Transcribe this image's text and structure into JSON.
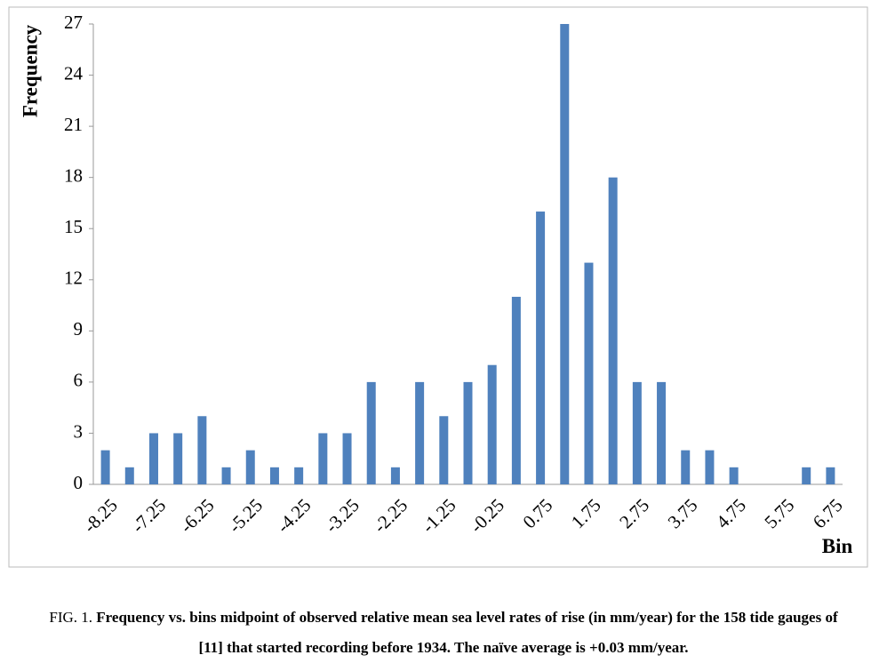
{
  "chart_data": {
    "type": "bar",
    "y_label": "Frequency",
    "x_label": "Bin",
    "caption_label": "FIG. 1.",
    "caption": "Frequency vs. bins midpoint of observed relative mean sea level rates of rise (in mm/year) for the 158 tide gauges of [11] that started recording before 1934. The naïve average is +0.03 mm/year.",
    "categories": [
      "-8.25",
      null,
      "-7.25",
      null,
      "-6.25",
      null,
      "-5.25",
      null,
      "-4.25",
      null,
      "-3.25",
      null,
      "-2.25",
      null,
      "-1.25",
      null,
      "-0.25",
      null,
      "0.75",
      null,
      "1.75",
      null,
      "2.75",
      null,
      "3.75",
      null,
      "4.75",
      null,
      "5.75",
      null,
      "6.75"
    ],
    "values": [
      2,
      1,
      3,
      3,
      4,
      1,
      2,
      1,
      1,
      3,
      3,
      6,
      1,
      6,
      4,
      6,
      7,
      11,
      16,
      27,
      13,
      18,
      6,
      6,
      2,
      2,
      1,
      0,
      0,
      1,
      1
    ],
    "color": "#4f81bd",
    "ylim": [
      0,
      27
    ],
    "yticks": [
      0,
      3,
      6,
      9,
      12,
      15,
      18,
      21,
      24,
      27
    ],
    "grid": false
  }
}
